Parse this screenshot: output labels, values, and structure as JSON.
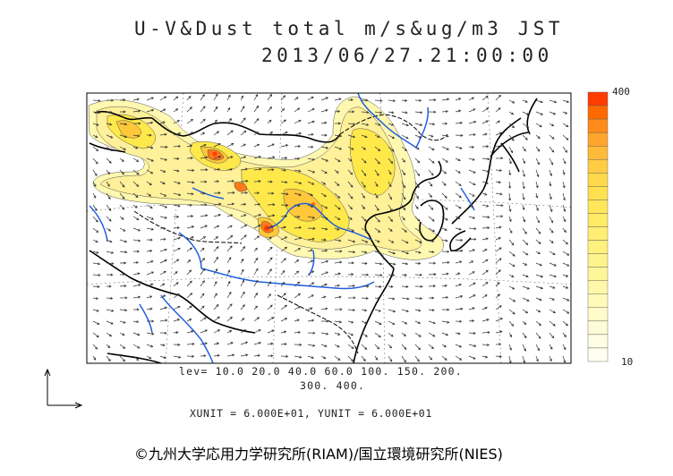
{
  "title": {
    "line1": "U-V&Dust total m/s&ug/m3 JST",
    "line2": "2013/06/27.21:00:00"
  },
  "contour_levels": {
    "line1": "lev= 10.0 20.0 40.0 60.0 100. 150. 200.",
    "line2": "300. 400."
  },
  "units_line": "XUNIT = 6.000E+01, YUNIT = 6.000E+01",
  "colorbar": {
    "max_label": "400",
    "min_label": "10",
    "colors": [
      "#ff3c00",
      "#ff6a00",
      "#ff8c1a",
      "#ffa52e",
      "#ffba3a",
      "#ffcc44",
      "#ffd84c",
      "#ffe050",
      "#ffe65a",
      "#ffeb66",
      "#ffee72",
      "#fff17e",
      "#fff48c",
      "#fff69a",
      "#fff8aa",
      "#fffaba",
      "#fffbca",
      "#fffcd8",
      "#fffde4",
      "#fffef0"
    ]
  },
  "copyright": "©九州大学応用力学研究所(RIAM)/国立環境研究所(NIES)",
  "colors": {
    "coastline": "#000000",
    "rivers": "#1f5fe0",
    "dust_light": "#fff8b0",
    "dust_mid": "#ffe94a",
    "dust_heavy": "#ff9a2a",
    "dust_peak": "#ff4a10",
    "vectors": "#333333"
  }
}
